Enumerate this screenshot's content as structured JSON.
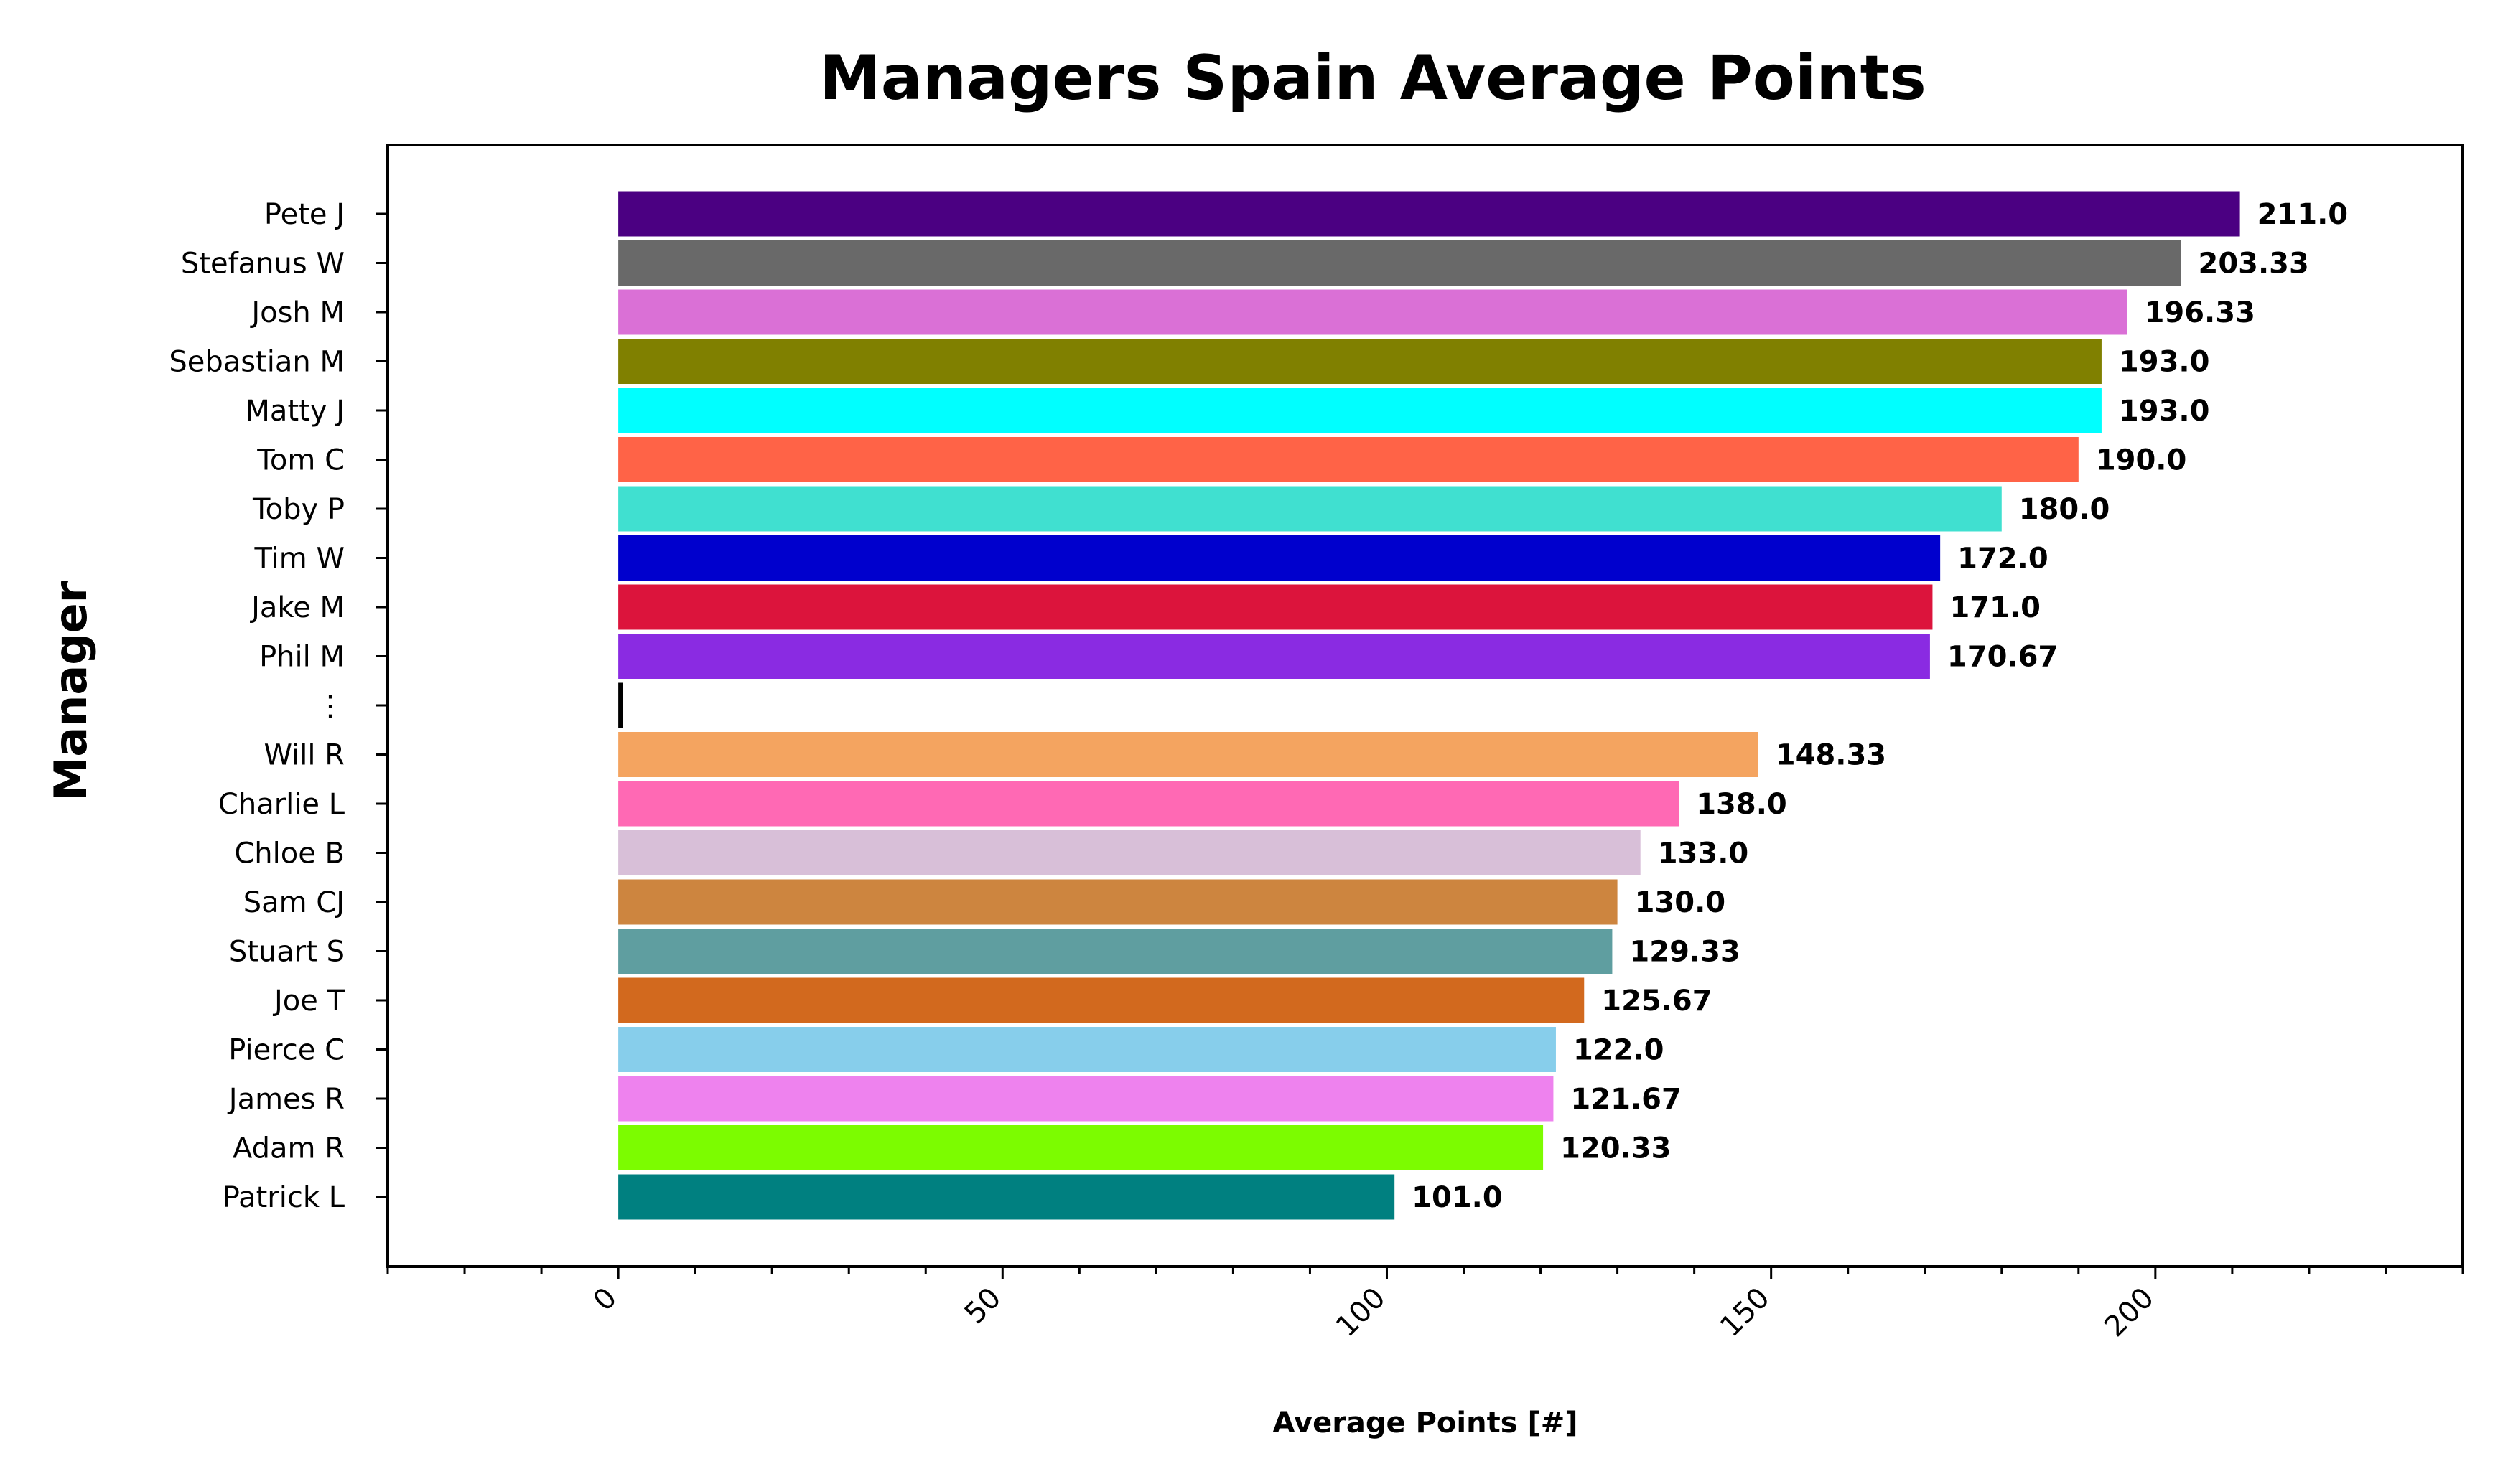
{
  "chart_data": {
    "type": "bar",
    "orientation": "horizontal",
    "title": "Managers Spain Average Points",
    "xlabel": "Average Points [#]",
    "ylabel": "Manager",
    "xlim": [
      -30,
      240
    ],
    "x_major_ticks": [
      0,
      50,
      100,
      150,
      200
    ],
    "x_minor_tick_step": 10,
    "grid": false,
    "legend": "none",
    "categories": [
      "Pete J",
      "Stefanus W",
      "Josh M",
      "Sebastian M",
      "Matty J",
      "Tom C",
      "Toby P",
      "Tim W",
      "Jake M",
      "Phil M",
      "⋮",
      "Will R",
      "Charlie L",
      "Chloe B",
      "Sam CJ",
      "Stuart S",
      "Joe T",
      "Pierce C",
      "James R",
      "Adam R",
      "Patrick L"
    ],
    "values": [
      211.0,
      203.33,
      196.33,
      193.0,
      193.0,
      190.0,
      180.0,
      172.0,
      171.0,
      170.67,
      0.6,
      148.33,
      138.0,
      133.0,
      130.0,
      129.33,
      125.67,
      122.0,
      121.67,
      120.33,
      101.0
    ],
    "value_labels": [
      "211.0",
      "203.33",
      "196.33",
      "193.0",
      "193.0",
      "190.0",
      "180.0",
      "172.0",
      "171.0",
      "170.67",
      "",
      "148.33",
      "138.0",
      "133.0",
      "130.0",
      "129.33",
      "125.67",
      "122.0",
      "121.67",
      "120.33",
      "101.0"
    ],
    "colors": [
      "#4b0082",
      "#696969",
      "#da70d6",
      "#808000",
      "#00ffff",
      "#ff6347",
      "#40e0d0",
      "#0000cd",
      "#dc143c",
      "#8a2be2",
      "#000000",
      "#f4a460",
      "#ff69b4",
      "#d8bfd8",
      "#cd853f",
      "#5f9ea0",
      "#d2691e",
      "#87ceeb",
      "#ee82ee",
      "#7cfc00",
      "#008080"
    ]
  }
}
